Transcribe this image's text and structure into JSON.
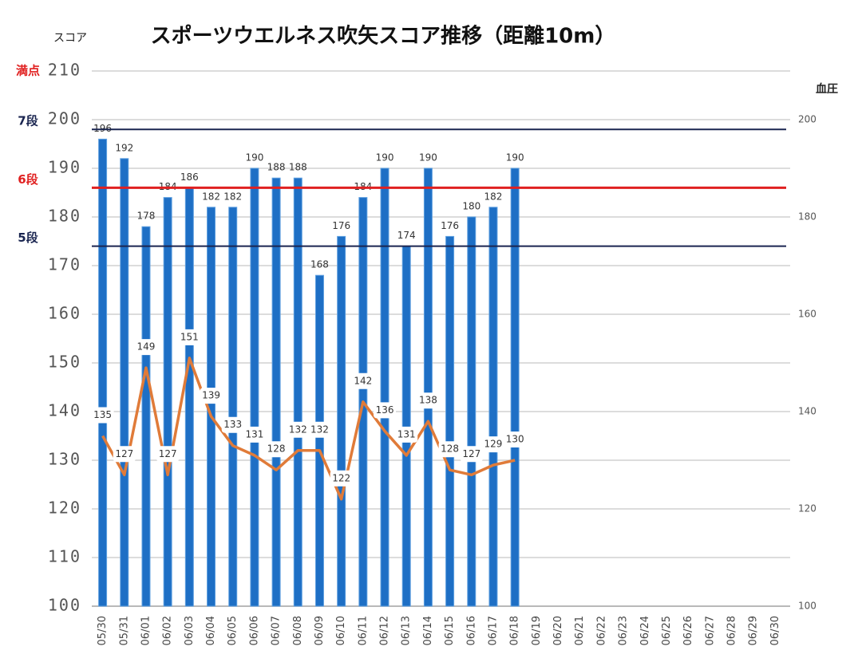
{
  "chart_data": {
    "type": "bar",
    "title": "スポーツウエルネス吹矢スコア推移（距離10m）",
    "y_label": "スコア",
    "y2_label": "血圧",
    "categories": [
      "05/30",
      "05/31",
      "06/01",
      "06/02",
      "06/03",
      "06/04",
      "06/05",
      "06/06",
      "06/07",
      "06/08",
      "06/09",
      "06/10",
      "06/11",
      "06/12",
      "06/13",
      "06/14",
      "06/15",
      "06/16",
      "06/17",
      "06/18",
      "06/19",
      "06/20",
      "06/21",
      "06/22",
      "06/23",
      "06/24",
      "06/25",
      "06/26",
      "06/27",
      "06/28",
      "06/29",
      "06/30"
    ],
    "series": [
      {
        "type": "bar",
        "color": "#1e6fc5",
        "values": [
          196,
          192,
          178,
          184,
          186,
          182,
          182,
          190,
          188,
          188,
          168,
          176,
          184,
          190,
          174,
          190,
          176,
          180,
          182,
          190,
          null,
          null,
          null,
          null,
          null,
          null,
          null,
          null,
          null,
          null,
          null,
          null
        ]
      },
      {
        "type": "line",
        "axis": "y2",
        "color": "#e07b39",
        "values": [
          135,
          127,
          149,
          127,
          151,
          139,
          133,
          131,
          128,
          132,
          132,
          122,
          142,
          136,
          131,
          138,
          128,
          127,
          129,
          130,
          null,
          null,
          null,
          null,
          null,
          null,
          null,
          null,
          null,
          null,
          null,
          null
        ]
      }
    ],
    "ylim": [
      100,
      210
    ],
    "yticks": [
      100,
      110,
      120,
      130,
      140,
      150,
      160,
      170,
      180,
      190,
      200,
      210
    ],
    "y2lim": [
      100,
      210
    ],
    "y2ticks": [
      100,
      120,
      140,
      160,
      180,
      200
    ],
    "grid": true,
    "reference_lines": [
      {
        "label": "満点",
        "value": 210,
        "color": "#e02020",
        "line": false
      },
      {
        "label": "7段",
        "value": 198,
        "color": "#1a2550",
        "line": true
      },
      {
        "label": "6段",
        "value": 186,
        "color": "#e02020",
        "line": true
      },
      {
        "label": "5段",
        "value": 174,
        "color": "#1a2550",
        "line": true
      }
    ]
  }
}
